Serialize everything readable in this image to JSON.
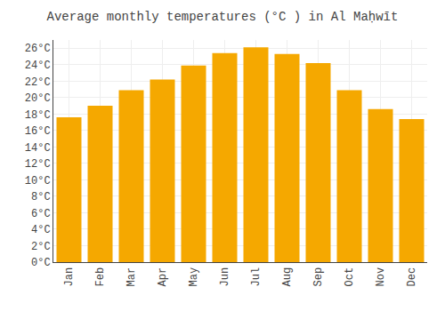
{
  "chart_data": {
    "type": "bar",
    "title": "Average monthly temperatures (°C ) in Al Maḥwīt",
    "categories": [
      "Jan",
      "Feb",
      "Mar",
      "Apr",
      "May",
      "Jun",
      "Jul",
      "Aug",
      "Sep",
      "Oct",
      "Nov",
      "Dec"
    ],
    "values": [
      17.6,
      19.0,
      20.9,
      22.2,
      23.9,
      25.4,
      26.1,
      25.3,
      24.2,
      20.9,
      18.6,
      17.4
    ],
    "color": "#F5A800",
    "ylim": [
      0,
      27
    ],
    "yticks": [
      {
        "value": 0,
        "label": "0°C"
      },
      {
        "value": 2,
        "label": "2°C"
      },
      {
        "value": 4,
        "label": "4°C"
      },
      {
        "value": 6,
        "label": "6°C"
      },
      {
        "value": 8,
        "label": "8°C"
      },
      {
        "value": 10,
        "label": "10°C"
      },
      {
        "value": 12,
        "label": "12°C"
      },
      {
        "value": 14,
        "label": "14°C"
      },
      {
        "value": 16,
        "label": "16°C"
      },
      {
        "value": 18,
        "label": "18°C"
      },
      {
        "value": 20,
        "label": "20°C"
      },
      {
        "value": 22,
        "label": "22°C"
      },
      {
        "value": 24,
        "label": "24°C"
      },
      {
        "value": 26,
        "label": "26°C"
      }
    ],
    "grid": true
  }
}
